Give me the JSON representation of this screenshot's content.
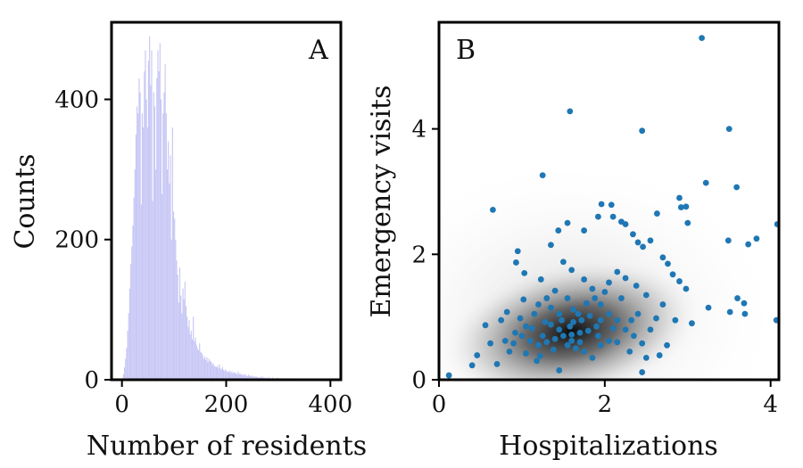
{
  "chart_data": [
    {
      "type": "histogram",
      "panel_label": "A",
      "xlabel": "Number of residents",
      "ylabel": "Counts",
      "xlim": [
        -20,
        420
      ],
      "ylim": [
        0,
        510
      ],
      "xticks": [
        0,
        200,
        400
      ],
      "yticks": [
        0,
        200,
        400
      ],
      "bin_width": 2,
      "bar_color": "#c8c8f6",
      "bins_start": [
        0,
        2,
        4,
        6,
        8,
        10,
        12,
        14,
        16,
        18,
        20,
        22,
        24,
        26,
        28,
        30,
        32,
        34,
        36,
        38,
        40,
        42,
        44,
        46,
        48,
        50,
        52,
        54,
        56,
        58,
        60,
        62,
        64,
        66,
        68,
        70,
        72,
        74,
        76,
        78,
        80,
        82,
        84,
        86,
        88,
        90,
        92,
        94,
        96,
        98,
        100,
        102,
        104,
        106,
        108,
        110,
        112,
        114,
        116,
        118,
        120,
        122,
        124,
        126,
        128,
        130,
        132,
        134,
        136,
        138,
        140,
        142,
        144,
        146,
        148,
        150,
        152,
        154,
        156,
        158,
        160,
        162,
        164,
        166,
        168,
        170,
        172,
        174,
        176,
        178,
        180,
        182,
        184,
        186,
        188,
        190,
        192,
        194,
        196,
        198,
        200,
        202,
        204,
        206,
        208,
        210,
        212,
        214,
        216,
        218,
        220,
        222,
        224,
        226,
        228,
        230,
        232,
        234,
        236,
        238,
        240,
        242,
        244,
        246,
        248,
        250,
        252,
        254,
        256,
        258,
        260,
        262,
        264,
        266,
        268,
        270,
        272,
        274,
        276,
        278,
        280,
        282,
        284,
        286,
        288,
        290,
        292,
        294,
        296,
        298,
        300,
        302,
        304,
        306,
        308,
        310,
        312,
        314,
        316,
        318,
        320,
        322,
        324,
        326,
        328,
        330,
        332,
        334,
        336,
        338,
        340,
        342,
        344,
        346,
        348,
        350,
        352,
        354,
        356,
        358,
        360,
        362,
        364,
        366,
        368,
        370,
        372,
        374,
        376,
        378,
        380
      ],
      "counts": [
        2,
        8,
        18,
        30,
        45,
        70,
        95,
        130,
        165,
        190,
        220,
        260,
        300,
        350,
        390,
        380,
        430,
        410,
        250,
        380,
        360,
        440,
        470,
        400,
        360,
        455,
        490,
        420,
        470,
        255,
        410,
        390,
        300,
        430,
        470,
        440,
        480,
        400,
        265,
        380,
        410,
        450,
        380,
        300,
        340,
        280,
        320,
        200,
        360,
        240,
        230,
        200,
        170,
        150,
        110,
        160,
        120,
        95,
        130,
        115,
        140,
        105,
        90,
        75,
        85,
        65,
        70,
        58,
        90,
        55,
        60,
        50,
        45,
        42,
        52,
        40,
        38,
        35,
        30,
        33,
        28,
        32,
        25,
        30,
        27,
        26,
        22,
        24,
        20,
        19,
        18,
        20,
        17,
        22,
        16,
        15,
        18,
        14,
        13,
        15,
        12,
        12,
        11,
        13,
        10,
        12,
        9,
        11,
        10,
        9,
        8,
        12,
        8,
        9,
        7,
        8,
        6,
        8,
        7,
        6,
        5,
        7,
        6,
        5,
        6,
        4,
        5,
        4,
        5,
        4,
        4,
        3,
        4,
        3,
        5,
        3,
        3,
        2,
        3,
        3,
        2,
        4,
        2,
        2,
        3,
        2,
        2,
        1,
        2,
        3,
        2,
        1,
        2,
        2,
        1,
        2,
        1,
        1,
        2,
        1,
        1,
        2,
        1,
        1,
        1,
        1,
        2,
        1,
        1,
        1,
        1,
        1,
        0,
        1,
        1,
        0,
        1,
        1,
        0,
        1,
        0,
        1,
        0,
        1,
        0,
        1,
        0,
        1,
        0,
        1,
        0
      ]
    },
    {
      "type": "scatter",
      "panel_label": "B",
      "xlabel": "Hospitalizations",
      "ylabel": "Emergency visits",
      "xlim": [
        0,
        4.1
      ],
      "ylim": [
        0,
        5.7
      ],
      "xticks": [
        0,
        2,
        4
      ],
      "yticks": [
        0,
        2,
        4
      ],
      "point_color": "#1f77b4",
      "density_background": "grayscale kernel density of points, darkest near (1.6, 0.7)",
      "points": [
        [
          3.17,
          5.45
        ],
        [
          1.58,
          4.28
        ],
        [
          2.45,
          3.97
        ],
        [
          3.5,
          4.0
        ],
        [
          1.25,
          3.26
        ],
        [
          3.22,
          3.14
        ],
        [
          0.65,
          2.71
        ],
        [
          3.59,
          3.07
        ],
        [
          2.9,
          2.9
        ],
        [
          2.92,
          2.75
        ],
        [
          2.98,
          2.76
        ],
        [
          3.83,
          2.25
        ],
        [
          3.73,
          2.16
        ],
        [
          4.08,
          2.48
        ],
        [
          3.49,
          2.22
        ],
        [
          3.0,
          2.5
        ],
        [
          3.25,
          1.15
        ],
        [
          3.6,
          1.3
        ],
        [
          3.68,
          1.22
        ],
        [
          3.51,
          1.08
        ],
        [
          3.69,
          1.05
        ],
        [
          4.07,
          0.95
        ],
        [
          0.12,
          0.07
        ],
        [
          0.4,
          0.23
        ],
        [
          0.46,
          0.39
        ],
        [
          0.56,
          0.87
        ],
        [
          0.95,
          2.05
        ],
        [
          0.93,
          1.87
        ],
        [
          1.03,
          1.7
        ],
        [
          1.23,
          1.6
        ],
        [
          1.35,
          2.15
        ],
        [
          1.44,
          2.38
        ],
        [
          1.55,
          2.5
        ],
        [
          1.75,
          2.38
        ],
        [
          1.92,
          2.6
        ],
        [
          1.96,
          2.8
        ],
        [
          2.08,
          2.79
        ],
        [
          2.1,
          2.6
        ],
        [
          2.2,
          2.52
        ],
        [
          2.25,
          2.48
        ],
        [
          2.34,
          2.32
        ],
        [
          2.4,
          2.19
        ],
        [
          2.46,
          2.12
        ],
        [
          2.55,
          2.22
        ],
        [
          2.63,
          2.65
        ],
        [
          2.7,
          1.95
        ],
        [
          2.76,
          1.85
        ],
        [
          2.82,
          1.68
        ],
        [
          2.9,
          1.57
        ],
        [
          2.98,
          1.45
        ],
        [
          3.05,
          0.9
        ],
        [
          2.75,
          0.55
        ],
        [
          2.66,
          0.39
        ],
        [
          2.45,
          0.12
        ],
        [
          1.85,
          0.35
        ],
        [
          1.45,
          0.15
        ],
        [
          0.85,
          0.45
        ],
        [
          1.05,
          0.42
        ],
        [
          1.22,
          0.38
        ],
        [
          1.7,
          0.6
        ],
        [
          1.62,
          0.92
        ],
        [
          1.68,
          1.05
        ],
        [
          1.55,
          1.3
        ],
        [
          1.45,
          1.05
        ],
        [
          1.35,
          0.88
        ],
        [
          1.25,
          0.7
        ],
        [
          1.15,
          1.05
        ],
        [
          1.05,
          0.85
        ],
        [
          0.92,
          0.75
        ],
        [
          0.8,
          0.62
        ],
        [
          0.75,
          0.95
        ],
        [
          1.85,
          1.45
        ],
        [
          1.95,
          1.2
        ],
        [
          2.05,
          1.05
        ],
        [
          2.15,
          0.95
        ],
        [
          2.25,
          0.8
        ],
        [
          2.35,
          0.7
        ],
        [
          2.05,
          1.55
        ],
        [
          2.15,
          1.72
        ],
        [
          2.25,
          1.62
        ],
        [
          1.9,
          0.85
        ],
        [
          1.8,
          0.78
        ],
        [
          1.7,
          0.75
        ],
        [
          1.6,
          0.72
        ],
        [
          1.5,
          0.7
        ],
        [
          1.4,
          0.65
        ],
        [
          1.3,
          0.6
        ],
        [
          1.2,
          0.55
        ],
        [
          1.1,
          0.62
        ],
        [
          1.0,
          0.7
        ],
        [
          0.9,
          0.58
        ],
        [
          1.55,
          0.55
        ],
        [
          1.65,
          0.5
        ],
        [
          1.75,
          0.45
        ],
        [
          1.95,
          0.55
        ],
        [
          2.05,
          0.62
        ],
        [
          2.15,
          0.6
        ],
        [
          2.3,
          0.45
        ],
        [
          2.45,
          0.58
        ],
        [
          2.55,
          0.8
        ],
        [
          2.62,
          0.98
        ],
        [
          2.7,
          1.2
        ],
        [
          2.5,
          1.35
        ],
        [
          2.38,
          1.5
        ],
        [
          1.4,
          1.42
        ],
        [
          1.3,
          1.3
        ],
        [
          1.2,
          1.2
        ],
        [
          1.35,
          1.15
        ],
        [
          1.48,
          0.95
        ],
        [
          1.58,
          0.85
        ],
        [
          1.72,
          0.95
        ],
        [
          1.82,
          1.02
        ],
        [
          1.95,
          0.95
        ],
        [
          2.1,
          0.82
        ],
        [
          1.6,
          0.62
        ],
        [
          1.45,
          0.8
        ],
        [
          1.28,
          0.92
        ],
        [
          1.12,
          0.82
        ],
        [
          0.98,
          0.98
        ],
        [
          1.88,
          1.3
        ],
        [
          2.0,
          1.4
        ],
        [
          1.75,
          1.6
        ],
        [
          1.6,
          1.75
        ],
        [
          1.5,
          1.88
        ],
        [
          2.4,
          1.05
        ],
        [
          2.5,
          0.35
        ],
        [
          2.85,
          0.95
        ],
        [
          1.18,
          0.3
        ],
        [
          0.7,
          0.25
        ],
        [
          0.62,
          0.58
        ],
        [
          1.02,
          1.28
        ],
        [
          1.62,
          1.12
        ],
        [
          1.78,
          1.22
        ],
        [
          1.92,
          0.7
        ],
        [
          2.2,
          1.3
        ],
        [
          2.32,
          0.95
        ],
        [
          0.82,
          1.08
        ],
        [
          1.38,
          0.48
        ]
      ]
    }
  ]
}
